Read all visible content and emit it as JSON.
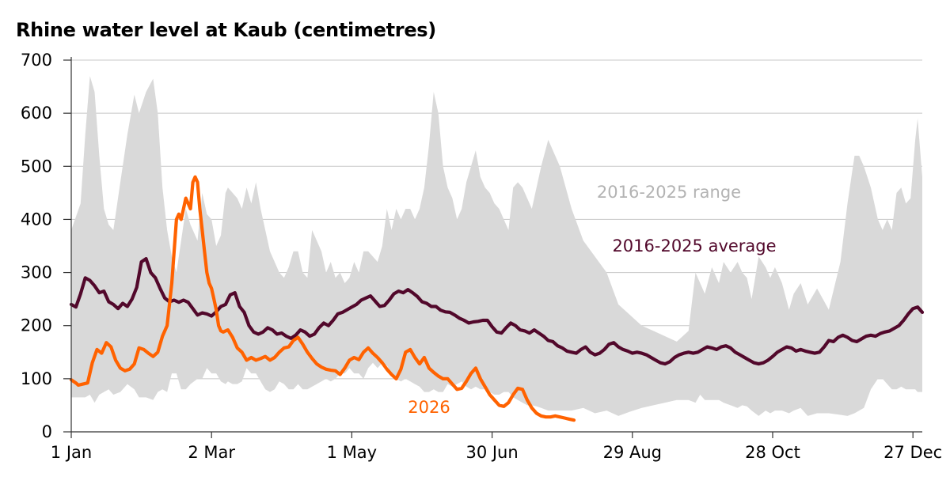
{
  "chart_data": {
    "type": "line",
    "title": "Rhine water level at Kaub (centimetres)",
    "xlabel": "",
    "ylabel": "",
    "ylim": [
      0,
      700
    ],
    "xlim_day": [
      1,
      365
    ],
    "yticks": [
      0,
      100,
      200,
      300,
      400,
      500,
      600,
      700
    ],
    "xticks": [
      {
        "label": "1 Jan",
        "day": 1
      },
      {
        "label": "2 Mar",
        "day": 61
      },
      {
        "label": "1 May",
        "day": 121
      },
      {
        "label": "30 Jun",
        "day": 181
      },
      {
        "label": "29 Aug",
        "day": 241
      },
      {
        "label": "28 Oct",
        "day": 301
      },
      {
        "label": "27 Dec",
        "day": 361
      }
    ],
    "grid": true,
    "legend": "none (direct labels)",
    "colors": {
      "range": "#d9d9d9",
      "average": "#52082b",
      "current": "#ff6200"
    },
    "annotations": [
      {
        "text": "2016-2025 range",
        "series": "range"
      },
      {
        "text": "2016-2025 average",
        "series": "average"
      },
      {
        "text": "2026",
        "series": "current"
      }
    ],
    "range": {
      "name": "2016-2025 range",
      "day": [
        1,
        5,
        7,
        9,
        11,
        13,
        15,
        17,
        19,
        22,
        25,
        28,
        30,
        33,
        36,
        38,
        40,
        42,
        44,
        46,
        48,
        50,
        52,
        55,
        57,
        59,
        61,
        63,
        65,
        67,
        68,
        70,
        72,
        74,
        76,
        78,
        80,
        82,
        84,
        86,
        88,
        90,
        92,
        94,
        96,
        98,
        100,
        102,
        104,
        106,
        108,
        110,
        112,
        114,
        116,
        118,
        120,
        122,
        124,
        126,
        128,
        130,
        132,
        134,
        136,
        138,
        140,
        142,
        144,
        146,
        148,
        150,
        152,
        154,
        156,
        158,
        160,
        162,
        164,
        166,
        168,
        170,
        172,
        174,
        176,
        178,
        180,
        182,
        184,
        186,
        188,
        190,
        192,
        194,
        196,
        198,
        200,
        202,
        205,
        210,
        215,
        220,
        225,
        230,
        235,
        240,
        245,
        250,
        255,
        260,
        265,
        268,
        270,
        272,
        275,
        278,
        280,
        283,
        286,
        288,
        290,
        292,
        295,
        298,
        300,
        302,
        305,
        308,
        310,
        313,
        316,
        320,
        325,
        330,
        333,
        336,
        338,
        340,
        343,
        346,
        348,
        350,
        352,
        354,
        356,
        358,
        360,
        362,
        363,
        365
      ],
      "high": [
        380,
        430,
        560,
        670,
        640,
        520,
        420,
        390,
        380,
        470,
        560,
        635,
        600,
        640,
        665,
        600,
        460,
        380,
        330,
        300,
        360,
        420,
        390,
        360,
        450,
        410,
        400,
        350,
        370,
        450,
        460,
        450,
        440,
        420,
        460,
        430,
        470,
        420,
        380,
        340,
        320,
        300,
        290,
        310,
        340,
        340,
        300,
        290,
        380,
        360,
        340,
        300,
        320,
        290,
        300,
        280,
        290,
        320,
        300,
        340,
        340,
        330,
        320,
        350,
        420,
        380,
        420,
        400,
        420,
        420,
        400,
        420,
        460,
        540,
        640,
        600,
        500,
        460,
        440,
        400,
        420,
        470,
        500,
        530,
        480,
        460,
        450,
        430,
        420,
        400,
        380,
        460,
        470,
        460,
        440,
        420,
        460,
        500,
        550,
        500,
        420,
        360,
        330,
        300,
        240,
        220,
        200,
        190,
        180,
        170,
        190,
        300,
        280,
        260,
        310,
        280,
        320,
        300,
        320,
        300,
        290,
        250,
        330,
        310,
        290,
        310,
        280,
        230,
        260,
        280,
        240,
        270,
        230,
        320,
        430,
        520,
        520,
        500,
        460,
        400,
        380,
        400,
        380,
        450,
        460,
        430,
        440,
        550,
        590,
        480
      ],
      "low": [
        65,
        65,
        65,
        70,
        55,
        70,
        75,
        80,
        70,
        75,
        90,
        80,
        65,
        65,
        60,
        75,
        80,
        75,
        110,
        110,
        80,
        80,
        90,
        100,
        100,
        120,
        110,
        110,
        95,
        90,
        95,
        90,
        90,
        95,
        120,
        110,
        110,
        95,
        80,
        75,
        80,
        95,
        90,
        80,
        80,
        90,
        80,
        80,
        85,
        90,
        95,
        100,
        95,
        100,
        110,
        110,
        120,
        110,
        110,
        100,
        120,
        130,
        120,
        130,
        125,
        110,
        100,
        95,
        100,
        95,
        90,
        85,
        75,
        75,
        80,
        75,
        75,
        90,
        85,
        90,
        95,
        85,
        80,
        85,
        80,
        80,
        75,
        70,
        70,
        75,
        75,
        65,
        60,
        55,
        50,
        50,
        48,
        45,
        40,
        40,
        40,
        45,
        35,
        40,
        30,
        38,
        45,
        50,
        55,
        60,
        60,
        55,
        70,
        60,
        60,
        60,
        55,
        50,
        45,
        50,
        48,
        40,
        30,
        40,
        35,
        40,
        40,
        35,
        40,
        45,
        30,
        35,
        35,
        32,
        30,
        35,
        40,
        45,
        80,
        100,
        100,
        90,
        80,
        80,
        85,
        80,
        80,
        80,
        75,
        75
      ]
    },
    "series": [
      {
        "name": "2016-2025 average",
        "day": [
          1,
          3,
          5,
          7,
          9,
          11,
          13,
          15,
          17,
          19,
          21,
          23,
          25,
          27,
          29,
          31,
          33,
          35,
          37,
          39,
          41,
          43,
          45,
          47,
          49,
          51,
          53,
          55,
          57,
          59,
          61,
          63,
          65,
          67,
          69,
          71,
          73,
          75,
          77,
          79,
          81,
          83,
          85,
          87,
          89,
          91,
          93,
          95,
          97,
          99,
          101,
          103,
          105,
          107,
          109,
          111,
          113,
          115,
          117,
          119,
          121,
          123,
          125,
          127,
          129,
          131,
          133,
          135,
          137,
          139,
          141,
          143,
          145,
          147,
          149,
          151,
          153,
          155,
          157,
          159,
          161,
          163,
          165,
          167,
          169,
          171,
          173,
          175,
          177,
          179,
          181,
          183,
          185,
          187,
          189,
          191,
          193,
          195,
          197,
          199,
          201,
          203,
          205,
          207,
          209,
          211,
          213,
          215,
          217,
          219,
          221,
          223,
          225,
          227,
          229,
          231,
          233,
          235,
          237,
          239,
          241,
          243,
          245,
          247,
          249,
          251,
          253,
          255,
          257,
          259,
          261,
          263,
          265,
          267,
          269,
          271,
          273,
          275,
          277,
          279,
          281,
          283,
          285,
          287,
          289,
          291,
          293,
          295,
          297,
          299,
          301,
          303,
          305,
          307,
          309,
          311,
          313,
          315,
          317,
          319,
          321,
          323,
          325,
          327,
          329,
          331,
          333,
          335,
          337,
          339,
          341,
          343,
          345,
          347,
          349,
          351,
          353,
          355,
          357,
          359,
          361,
          363,
          365
        ],
        "values": [
          240,
          235,
          260,
          290,
          285,
          275,
          262,
          265,
          245,
          240,
          232,
          242,
          236,
          250,
          272,
          320,
          326,
          300,
          290,
          270,
          252,
          245,
          248,
          244,
          248,
          244,
          232,
          220,
          224,
          222,
          218,
          226,
          236,
          240,
          258,
          262,
          236,
          225,
          200,
          188,
          184,
          188,
          196,
          192,
          184,
          186,
          180,
          176,
          182,
          192,
          188,
          180,
          184,
          196,
          205,
          200,
          210,
          222,
          225,
          230,
          235,
          240,
          248,
          252,
          256,
          246,
          236,
          238,
          248,
          260,
          265,
          262,
          268,
          262,
          255,
          245,
          242,
          236,
          236,
          229,
          226,
          225,
          220,
          214,
          210,
          205,
          207,
          208,
          210,
          210,
          198,
          188,
          186,
          196,
          205,
          200,
          192,
          190,
          186,
          192,
          186,
          180,
          172,
          170,
          162,
          158,
          152,
          150,
          148,
          155,
          160,
          150,
          145,
          148,
          155,
          165,
          168,
          160,
          155,
          152,
          148,
          150,
          148,
          145,
          140,
          135,
          130,
          128,
          132,
          140,
          145,
          148,
          150,
          148,
          150,
          155,
          160,
          158,
          155,
          160,
          162,
          158,
          150,
          145,
          140,
          135,
          130,
          128,
          130,
          135,
          142,
          150,
          155,
          160,
          158,
          152,
          155,
          152,
          150,
          148,
          150,
          160,
          172,
          170,
          178,
          182,
          178,
          172,
          170,
          175,
          180,
          182,
          180,
          185,
          188,
          190,
          195,
          200,
          210,
          222,
          232,
          235,
          225
        ]
      },
      {
        "name": "2026",
        "day": [
          1,
          3,
          4,
          6,
          8,
          10,
          12,
          14,
          16,
          18,
          20,
          22,
          24,
          26,
          28,
          30,
          32,
          34,
          36,
          38,
          40,
          42,
          44,
          46,
          47,
          48,
          49,
          50,
          51,
          52,
          53,
          54,
          55,
          56,
          57,
          58,
          59,
          60,
          61,
          62,
          63,
          64,
          65,
          66,
          67,
          68,
          70,
          72,
          74,
          76,
          78,
          80,
          82,
          84,
          86,
          88,
          90,
          92,
          94,
          96,
          98,
          100,
          102,
          104,
          106,
          108,
          110,
          112,
          114,
          116,
          118,
          120,
          122,
          124,
          126,
          128,
          130,
          132,
          134,
          136,
          138,
          140,
          142,
          144,
          146,
          148,
          150,
          152,
          154,
          156,
          158,
          160,
          162,
          164,
          166,
          168,
          170,
          172,
          174,
          176,
          178,
          180,
          182,
          184,
          186,
          188,
          190,
          192,
          194,
          196,
          198,
          200,
          202,
          204,
          206,
          208,
          210,
          212,
          214,
          216
        ],
        "values": [
          98,
          92,
          88,
          90,
          92,
          130,
          155,
          148,
          168,
          160,
          135,
          120,
          115,
          118,
          128,
          158,
          155,
          148,
          142,
          150,
          180,
          200,
          280,
          400,
          410,
          400,
          420,
          440,
          430,
          420,
          470,
          480,
          470,
          420,
          380,
          340,
          300,
          280,
          270,
          250,
          230,
          200,
          190,
          188,
          190,
          192,
          178,
          158,
          150,
          135,
          140,
          135,
          138,
          142,
          135,
          140,
          150,
          158,
          160,
          172,
          178,
          165,
          150,
          138,
          128,
          122,
          118,
          116,
          115,
          108,
          120,
          135,
          140,
          136,
          150,
          158,
          148,
          140,
          130,
          118,
          108,
          100,
          118,
          150,
          155,
          140,
          128,
          140,
          120,
          112,
          105,
          100,
          100,
          90,
          80,
          82,
          95,
          110,
          120,
          100,
          85,
          70,
          60,
          50,
          48,
          55,
          70,
          82,
          80,
          60,
          45,
          35,
          30,
          28,
          28,
          30,
          28,
          26,
          24,
          22
        ]
      }
    ]
  }
}
